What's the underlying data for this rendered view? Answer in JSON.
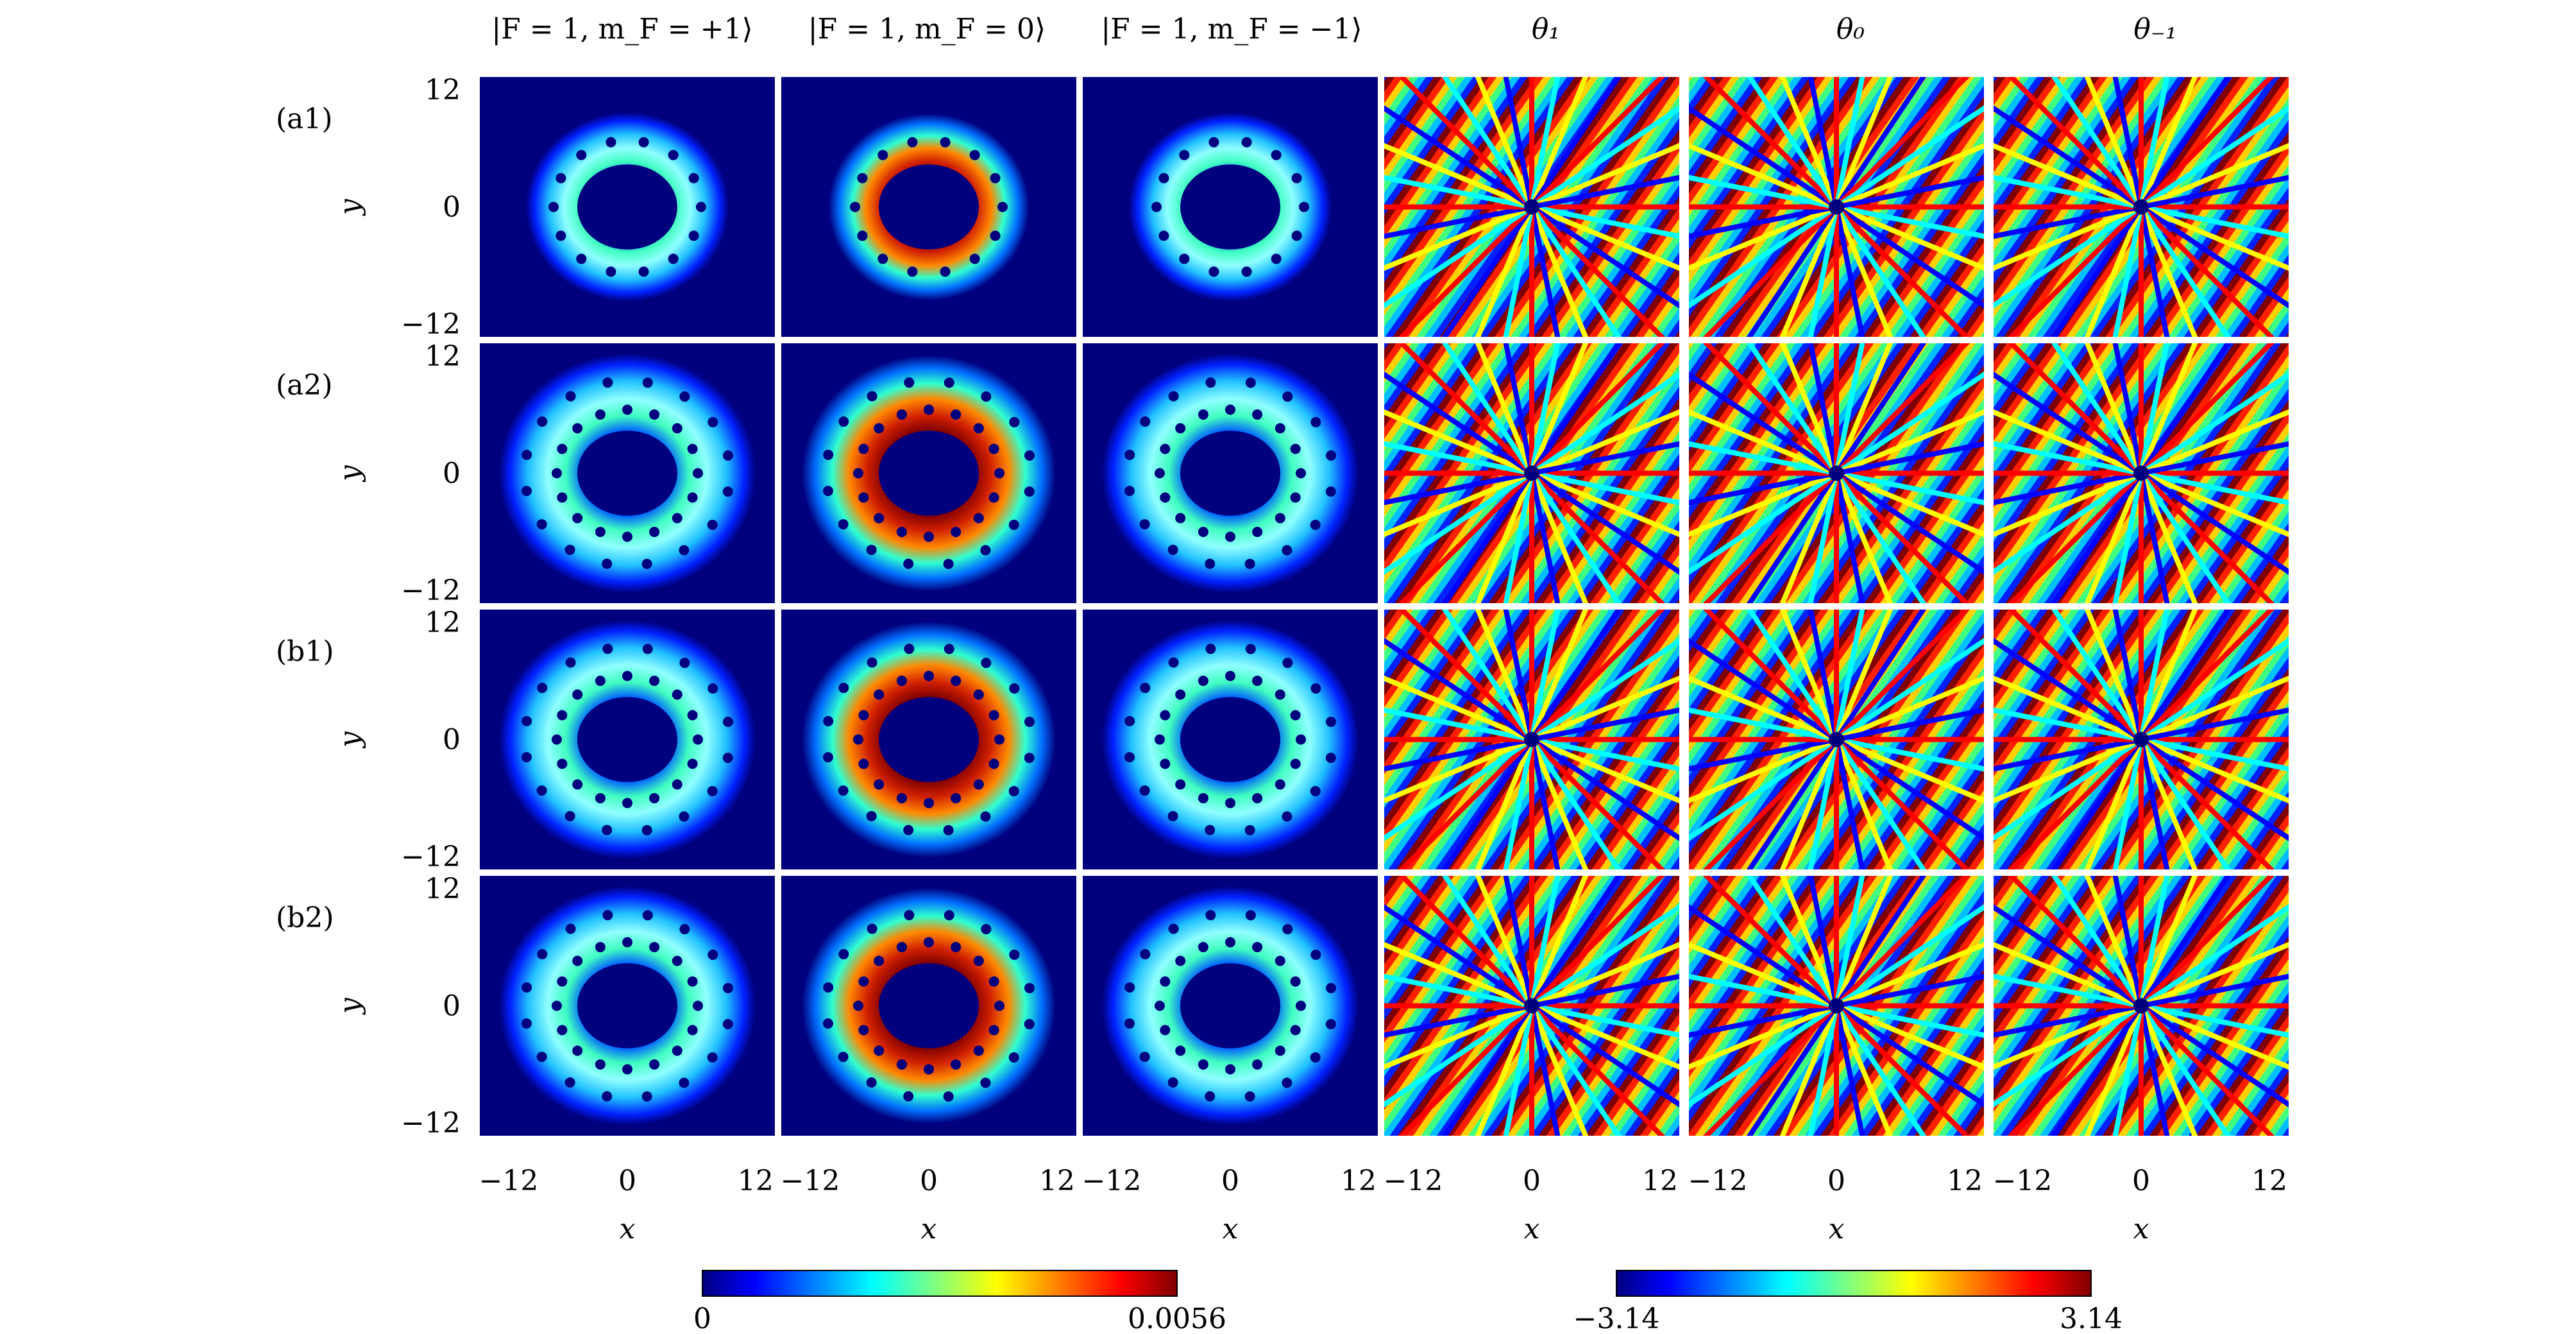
{
  "figure": {
    "column_headers": [
      "|F = 1, m_F = +1⟩",
      "|F = 1, m_F = 0⟩",
      "|F = 1, m_F = −1⟩",
      "θ₁",
      "θ₀",
      "θ₋₁"
    ],
    "row_labels": [
      "(a1)",
      "(a2)",
      "(b1)",
      "(b2)"
    ],
    "y_ticks": [
      "12",
      "0",
      "−12"
    ],
    "x_ticks": [
      "−12",
      "0",
      "12"
    ],
    "y_label": "y",
    "x_label": "x",
    "density_colorbar": {
      "min_label": "0",
      "max_label": "0.0056"
    },
    "phase_colorbar": {
      "min_label": "−3.14",
      "max_label": "3.14"
    }
  },
  "colors": {
    "jet_dark_blue": "#00007f",
    "jet_blue": "#0000ff",
    "jet_cyan": "#00ffff",
    "jet_yellow": "#ffff00",
    "jet_red": "#ff0000",
    "jet_dark_red": "#7f0000"
  }
}
